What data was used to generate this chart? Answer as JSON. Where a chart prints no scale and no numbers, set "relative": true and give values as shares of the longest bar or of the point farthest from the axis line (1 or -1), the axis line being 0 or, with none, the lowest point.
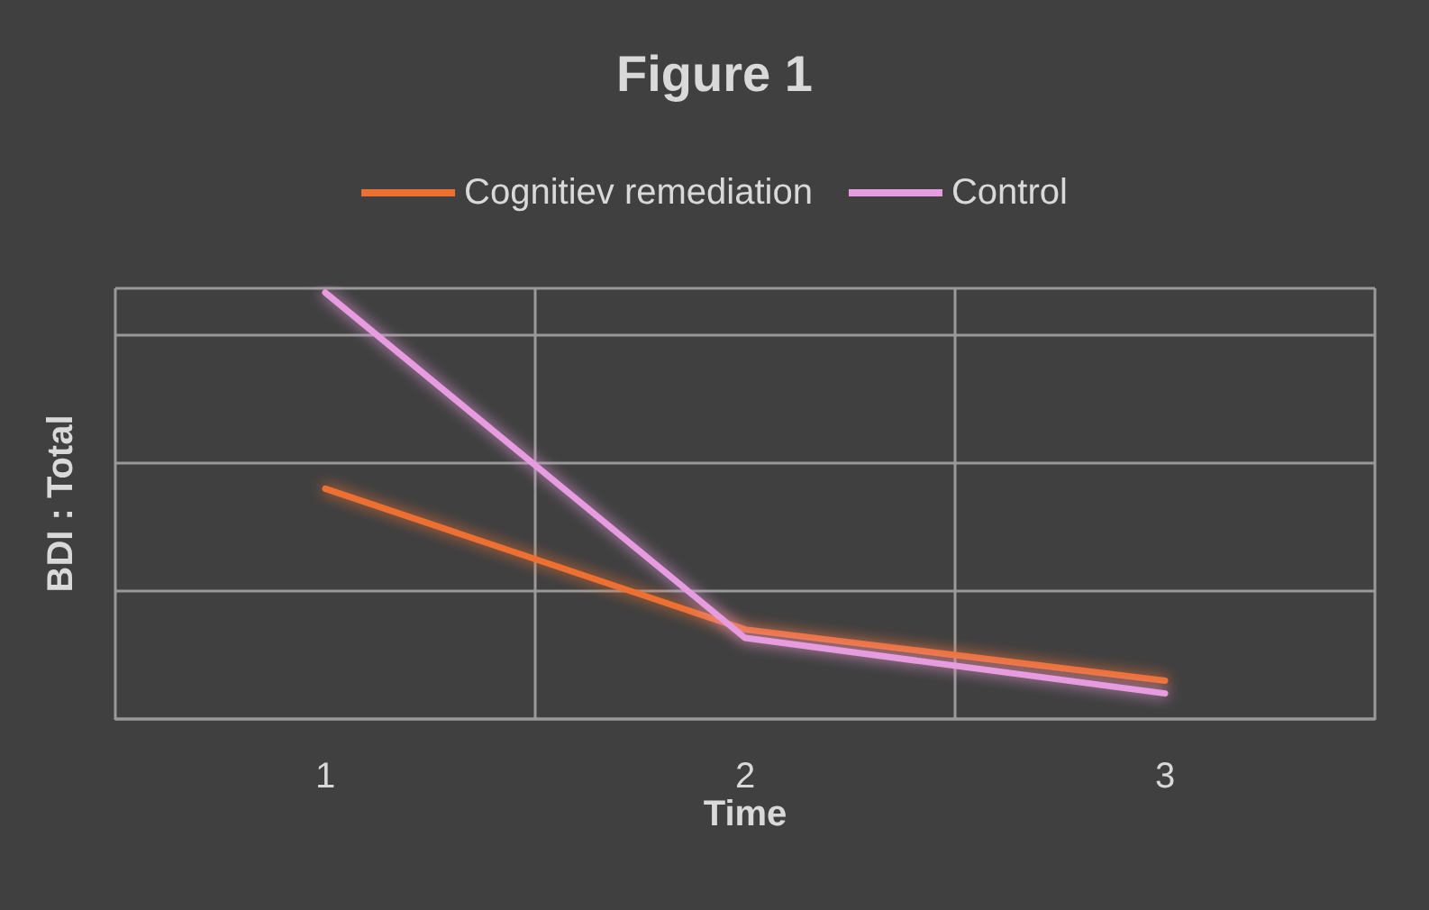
{
  "chart_data": {
    "type": "line",
    "title": "Figure 1",
    "xlabel": "Time",
    "ylabel": "BDI : Total",
    "categories": [
      "1",
      "2",
      "3"
    ],
    "relative": true,
    "grid": true,
    "legend": "top",
    "marker": "none",
    "line_style": "solid",
    "series": [
      {
        "name": "Cognitiev remediation",
        "color": "#ed7032",
        "values": [
          0.54,
          0.21,
          0.09
        ]
      },
      {
        "name": "Control",
        "color": "#e79ce0",
        "values": [
          1,
          0.19,
          0.06
        ]
      }
    ]
  }
}
